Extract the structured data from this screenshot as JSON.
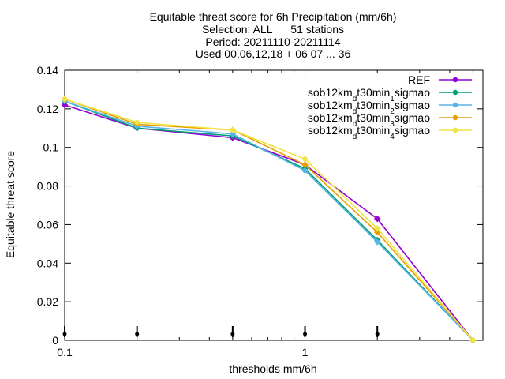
{
  "chart_data": {
    "type": "line",
    "title_lines": [
      "Equitable threat score  for 6h Precipitation (mm/6h)",
      "Selection: ALL      51 stations",
      "Period: 20211110-20211114",
      "Used 00,06,12,18 + 06 07 ... 36"
    ],
    "xlabel": "thresholds mm/6h",
    "ylabel": "Equitable threat score",
    "x_scale": "log",
    "xlim": [
      0.1,
      5.5
    ],
    "ylim": [
      0,
      0.14
    ],
    "x_ticks": [
      {
        "value": 0.1,
        "label": "0.1"
      },
      {
        "value": 1,
        "label": "1"
      }
    ],
    "y_ticks": [
      {
        "value": 0,
        "label": "0"
      },
      {
        "value": 0.02,
        "label": "0.02"
      },
      {
        "value": 0.04,
        "label": "0.04"
      },
      {
        "value": 0.06,
        "label": "0.06"
      },
      {
        "value": 0.08,
        "label": "0.08"
      },
      {
        "value": 0.1,
        "label": "0.1"
      },
      {
        "value": 0.12,
        "label": "0.12"
      },
      {
        "value": 0.14,
        "label": "0.14"
      }
    ],
    "grid": false,
    "legend_position": "top-right",
    "x": [
      0.1,
      0.2,
      0.5,
      1,
      2,
      5
    ],
    "series": [
      {
        "name": "REF",
        "name_parts": [
          {
            "t": "REF"
          }
        ],
        "color": "#9400d3",
        "values": [
          0.122,
          0.11,
          0.105,
          0.091,
          0.063,
          0.0
        ]
      },
      {
        "name": "sob12km_dt30min_1sigmao",
        "name_parts": [
          {
            "t": "sob12km"
          },
          {
            "t": "d",
            "sub": true
          },
          {
            "t": "t30min"
          },
          {
            "t": "1",
            "sub": true
          },
          {
            "t": "sigmao"
          }
        ],
        "color": "#009e73",
        "values": [
          0.124,
          0.11,
          0.106,
          0.089,
          0.052,
          0.0
        ]
      },
      {
        "name": "sob12km_dt30min_2sigmao",
        "name_parts": [
          {
            "t": "sob12km"
          },
          {
            "t": "d",
            "sub": true
          },
          {
            "t": "t30min"
          },
          {
            "t": "2",
            "sub": true
          },
          {
            "t": "sigmao"
          }
        ],
        "color": "#56b4e9",
        "values": [
          0.124,
          0.111,
          0.107,
          0.088,
          0.051,
          0.0
        ]
      },
      {
        "name": "sob12km_dt30min_3sigmao",
        "name_parts": [
          {
            "t": "sob12km"
          },
          {
            "t": "d",
            "sub": true
          },
          {
            "t": "t30min"
          },
          {
            "t": "3",
            "sub": true
          },
          {
            "t": "sigmao"
          }
        ],
        "color": "#e69f00",
        "values": [
          0.125,
          0.112,
          0.109,
          0.091,
          0.056,
          0.0
        ]
      },
      {
        "name": "sob12km_dt30min_4sigmao",
        "name_parts": [
          {
            "t": "sob12km"
          },
          {
            "t": "d",
            "sub": true
          },
          {
            "t": "t30min"
          },
          {
            "t": "4",
            "sub": true
          },
          {
            "t": "sigmao"
          }
        ],
        "color": "#f0e442",
        "values": [
          0.125,
          0.113,
          0.109,
          0.094,
          0.058,
          0.0
        ]
      }
    ],
    "x_markers": [
      0.1,
      0.2,
      0.5,
      1,
      2
    ]
  }
}
